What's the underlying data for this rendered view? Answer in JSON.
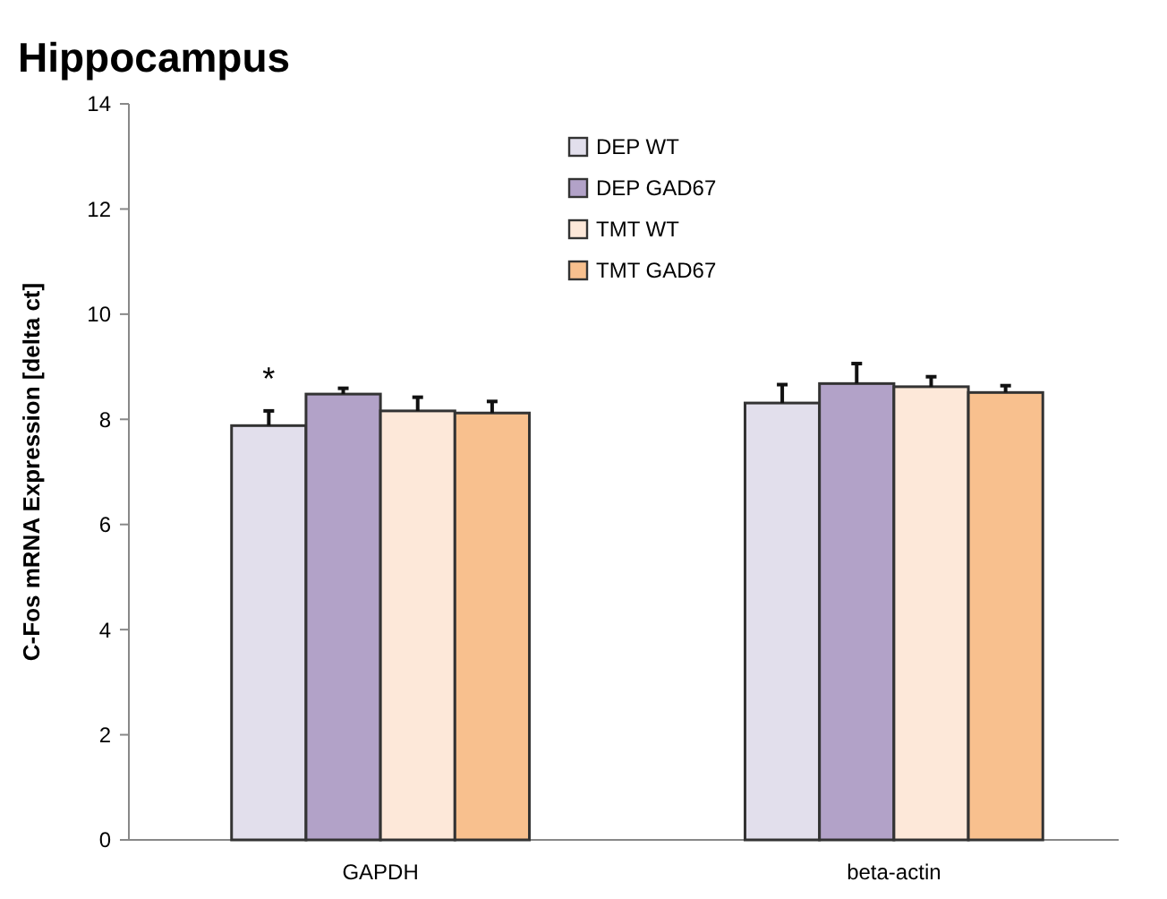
{
  "chart_data": {
    "type": "bar",
    "title": "Hippocampus",
    "ylabel": "C-Fos mRNA Expression [delta ct]",
    "categories": [
      "GAPDH",
      "beta-actin"
    ],
    "series": [
      {
        "name": "DEP WT",
        "color": "#e2dfec",
        "values": [
          7.88,
          8.31
        ],
        "errors": [
          0.28,
          0.35
        ]
      },
      {
        "name": "DEP GAD67",
        "color": "#b2a2c8",
        "values": [
          8.48,
          8.68
        ],
        "errors": [
          0.11,
          0.38
        ]
      },
      {
        "name": "TMT WT",
        "color": "#fde8d9",
        "values": [
          8.16,
          8.62
        ],
        "errors": [
          0.26,
          0.19
        ]
      },
      {
        "name": "TMT GAD67",
        "color": "#f8c08e",
        "values": [
          8.12,
          8.51
        ],
        "errors": [
          0.22,
          0.13
        ]
      }
    ],
    "ylim": [
      0,
      14
    ],
    "yticks": [
      0,
      2,
      4,
      6,
      8,
      10,
      12,
      14
    ],
    "grid": false,
    "legend": "top",
    "annotations": [
      "*"
    ]
  }
}
